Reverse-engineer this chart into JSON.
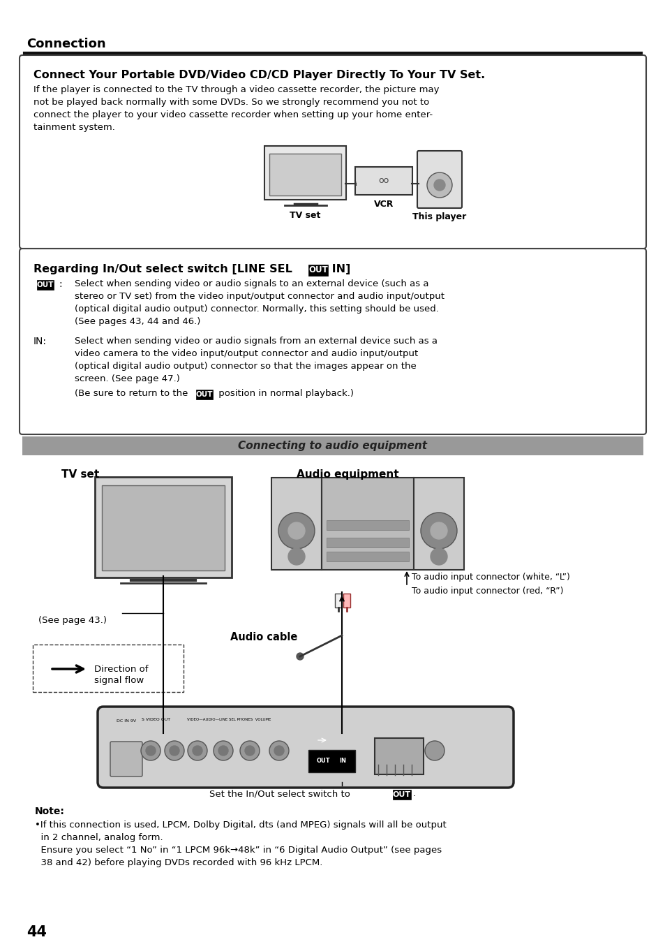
{
  "page_bg": "#ffffff",
  "title_section": "Connection",
  "box1_title": "Connect Your Portable DVD/Video CD/CD Player Directly To Your TV Set.",
  "box1_body_lines": [
    "If the player is connected to the TV through a video cassette recorder, the picture may",
    "not be played back normally with some DVDs. So we strongly recommend you not to",
    "connect the player to your video cassette recorder when setting up your home enter-",
    "tainment system."
  ],
  "box1_labels": [
    "TV set",
    "VCR",
    "This player"
  ],
  "box2_title_pre": "Regarding In/Out select switch [LINE SEL ",
  "box2_title_post": " IN]",
  "box2_out_desc_lines": [
    "Select when sending video or audio signals to an external device (such as a",
    "stereo or TV set) from the video input/output connector and audio input/output",
    "(optical digital audio output) connector. Normally, this setting should be used.",
    "(See pages 43, 44 and 46.)"
  ],
  "box2_in_label": "IN:",
  "box2_in_desc_lines": [
    "Select when sending video or audio signals from an external device such as a",
    "video camera to the video input/output connector and audio input/output",
    "(optical digital audio output) connector so that the images appear on the",
    "screen. (See page 47.)"
  ],
  "box2_in_return_pre": "(Be sure to return to the ",
  "box2_in_return_post": " position in normal playback.)",
  "section_banner": "Connecting to audio equipment",
  "diagram_tvset": "TV set",
  "diagram_audio": "Audio equipment",
  "diagram_connector1": "To audio input connector (white, “L”)",
  "diagram_connector2": "To audio input connector (red, “R”)",
  "diagram_seepage": "(See page 43.)",
  "diagram_audiocable": "Audio cable",
  "diagram_direction1": "Direction of",
  "diagram_direction2": "signal flow",
  "diagram_switch_pre": "Set the In/Out select switch to ",
  "diagram_switch_post": ".",
  "note_title": "Note:",
  "note_line1": "•If this connection is used, LPCM, Dolby Digital, dts (and MPEG) signals will all be output",
  "note_line2": "  in 2 channel, analog form.",
  "note_line3": "  Ensure you select “1 No” in “1 LPCM 96k→48k” in “6 Digital Audio Output” (see pages",
  "note_line4": "  38 and 42) before playing DVDs recorded with 96 kHz LPCM.",
  "page_number": "44",
  "out_badge_bg": "#000000",
  "out_badge_fg": "#ffffff",
  "banner_bg": "#aaaaaa",
  "banner_fg": "#222222"
}
